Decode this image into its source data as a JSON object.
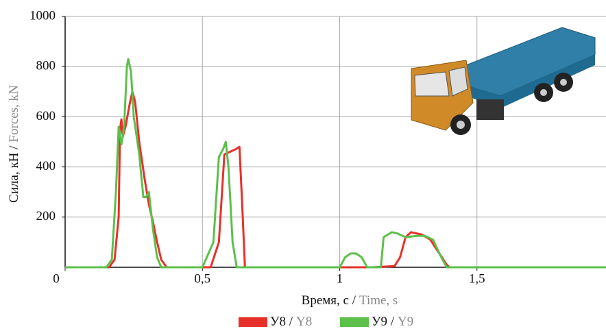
{
  "chart_data": {
    "type": "line",
    "xlabel": {
      "ru": "Время, с /",
      "en": "Time, s"
    },
    "ylabel": {
      "ru": "Сила, кН /",
      "en": "Forces, kN"
    },
    "xlim": [
      0,
      1.97
    ],
    "ylim": [
      0,
      1000
    ],
    "xticks": [
      0,
      {
        "value": 0.5,
        "label": "0,5"
      },
      1,
      {
        "value": 1.5,
        "label": "1,5"
      }
    ],
    "yticks": [
      200,
      400,
      600,
      800,
      1000
    ],
    "grid": true,
    "series": [
      {
        "name": "У8 /",
        "name_en": "Y8",
        "color": "#e8302a",
        "x": [
          0,
          0.16,
          0.18,
          0.195,
          0.2,
          0.205,
          0.21,
          0.22,
          0.235,
          0.245,
          0.255,
          0.27,
          0.29,
          0.305,
          0.32,
          0.335,
          0.35,
          0.37,
          0.53,
          0.56,
          0.58,
          0.6,
          0.62,
          0.635,
          0.645,
          0.655,
          1.12,
          1.2,
          1.22,
          1.24,
          1.26,
          1.28,
          1.3,
          1.33,
          1.36,
          1.39,
          1.4,
          1.97
        ],
        "values": [
          0,
          0,
          30,
          200,
          550,
          590,
          520,
          560,
          650,
          700,
          660,
          500,
          350,
          250,
          180,
          100,
          30,
          0,
          0,
          100,
          450,
          460,
          470,
          480,
          250,
          0,
          0,
          5,
          40,
          120,
          140,
          135,
          130,
          110,
          60,
          10,
          0,
          0
        ]
      },
      {
        "name": "У9 /",
        "name_en": "Y9",
        "color": "#5cc04a",
        "x": [
          0,
          0.15,
          0.17,
          0.185,
          0.195,
          0.205,
          0.215,
          0.225,
          0.23,
          0.24,
          0.25,
          0.27,
          0.285,
          0.295,
          0.305,
          0.32,
          0.335,
          0.35,
          0.5,
          0.54,
          0.56,
          0.575,
          0.585,
          0.595,
          0.61,
          0.625,
          1.0,
          1.02,
          1.04,
          1.06,
          1.08,
          1.1,
          1.15,
          1.16,
          1.19,
          1.21,
          1.24,
          1.28,
          1.31,
          1.34,
          1.37,
          1.39,
          1.97
        ],
        "values": [
          0,
          0,
          30,
          300,
          560,
          490,
          560,
          800,
          830,
          780,
          600,
          450,
          280,
          280,
          300,
          150,
          40,
          0,
          0,
          100,
          440,
          470,
          500,
          400,
          100,
          0,
          0,
          40,
          55,
          55,
          40,
          0,
          0,
          120,
          140,
          135,
          120,
          125,
          125,
          110,
          40,
          0,
          0
        ]
      }
    ]
  }
}
